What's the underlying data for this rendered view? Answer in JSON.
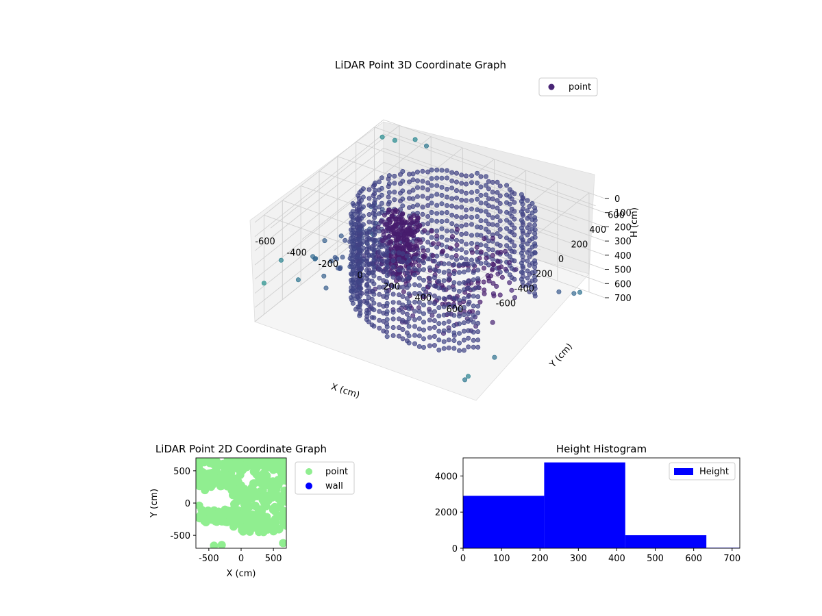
{
  "chart_data": [
    {
      "type": "scatter",
      "projection": "3d",
      "title": "LiDAR Point 3D Coordinate Graph",
      "xlabel": "X (cm)",
      "ylabel": "Y (cm)",
      "zlabel": "H (cm)",
      "xlim": [
        -700,
        700
      ],
      "ylim": [
        -700,
        700
      ],
      "zlim": [
        700,
        0
      ],
      "xticks": [
        "-600",
        "-400",
        "-200",
        "0",
        "200",
        "400",
        "600"
      ],
      "yticks": [
        "-600",
        "-400",
        "-200",
        "0",
        "200",
        "400",
        "600"
      ],
      "zticks": [
        "0",
        "100",
        "200",
        "300",
        "400",
        "500",
        "600",
        "700"
      ],
      "grid": true,
      "legend": {
        "placement": "upper-right",
        "entries": [
          {
            "label": "point",
            "color": "#482475"
          }
        ]
      },
      "colormap": "viridis",
      "series": [
        {
          "name": "point",
          "description": "dense ring of points around (100,0) radius ~500 spanning heights 0-700; cluster column near (-100,-100); scattered outliers",
          "ring": {
            "center": [
              100,
              0
            ],
            "radius": 500,
            "h_range": [
              0,
              700
            ]
          },
          "column": {
            "center": [
              -100,
              -150
            ],
            "h_range": [
              0,
              400
            ]
          },
          "outliers": [
            [
              -650,
              600,
              50
            ],
            [
              -600,
              650,
              80
            ],
            [
              -500,
              700,
              60
            ],
            [
              -400,
              650,
              40
            ],
            [
              -650,
              -500,
              350
            ],
            [
              -700,
              -600,
              480
            ],
            [
              -600,
              -400,
              520
            ],
            [
              650,
              -700,
              550
            ],
            [
              700,
              -500,
              500
            ],
            [
              600,
              -650,
              620
            ],
            [
              700,
              200,
              400
            ],
            [
              650,
              450,
              560
            ],
            [
              600,
              600,
              650
            ]
          ]
        }
      ]
    },
    {
      "type": "scatter",
      "title": "LiDAR Point 2D Coordinate Graph",
      "xlabel": "X (cm)",
      "ylabel": "Y (cm)",
      "xlim": [
        -700,
        700
      ],
      "ylim": [
        -700,
        700
      ],
      "xticks": [
        "-500",
        "0",
        "500"
      ],
      "yticks": [
        "-500",
        "0",
        "500"
      ],
      "legend": {
        "placement": "outside-right",
        "entries": [
          {
            "label": "point",
            "color": "#90ee90"
          },
          {
            "label": "wall",
            "color": "#0000ff"
          }
        ]
      },
      "series": [
        {
          "name": "point",
          "color": "#90ee90",
          "description": "dense top-down footprint of all points"
        },
        {
          "name": "wall",
          "color": "#0000ff",
          "values": []
        }
      ]
    },
    {
      "type": "bar",
      "title": "Height Histogram",
      "xlabel": "",
      "ylabel": "",
      "xlim": [
        0,
        720
      ],
      "ylim": [
        0,
        5000
      ],
      "xticks": [
        "0",
        "100",
        "200",
        "300",
        "400",
        "500",
        "600",
        "700"
      ],
      "yticks": [
        "0",
        "2000",
        "4000"
      ],
      "legend": {
        "placement": "upper-right",
        "entries": [
          {
            "label": "Height",
            "color": "#0000ff"
          }
        ]
      },
      "bins": [
        {
          "from": 0,
          "to": 211,
          "count": 2900
        },
        {
          "from": 211,
          "to": 422,
          "count": 4750
        },
        {
          "from": 422,
          "to": 633,
          "count": 720
        },
        {
          "from": 633,
          "to": 720,
          "count": 30
        }
      ],
      "series": [
        {
          "name": "Height",
          "color": "#0000ff"
        }
      ]
    }
  ]
}
